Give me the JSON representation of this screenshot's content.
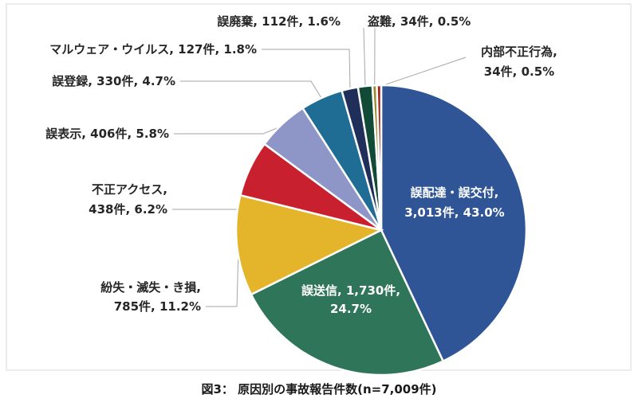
{
  "caption": "図3：  原因別の事故報告件数(n=7,009件)",
  "chart_data": {
    "type": "pie",
    "total": 7009,
    "slices": [
      {
        "name": "誤配達・誤交付",
        "count": 3013,
        "percent": 43.0,
        "color": "#2F5597",
        "label_lines": [
          "誤配達・誤交付,",
          "3,013件, 43.0%"
        ]
      },
      {
        "name": "誤送信",
        "count": 1730,
        "percent": 24.7,
        "color": "#2E7559",
        "label_lines": [
          "誤送信, 1,730件,",
          "24.7%"
        ]
      },
      {
        "name": "紛失・滅失・き損",
        "count": 785,
        "percent": 11.2,
        "color": "#E4B52A",
        "label_lines": [
          "紛失・滅失・き損,",
          "785件, 11.2%"
        ]
      },
      {
        "name": "不正アクセス",
        "count": 438,
        "percent": 6.2,
        "color": "#C9202F",
        "label_lines": [
          "不正アクセス,",
          "438件, 6.2%"
        ]
      },
      {
        "name": "誤表示",
        "count": 406,
        "percent": 5.8,
        "color": "#8E96C8",
        "label_lines": [
          "誤表示, 406件, 5.8%"
        ]
      },
      {
        "name": "誤登録",
        "count": 330,
        "percent": 4.7,
        "color": "#1F6C94",
        "label_lines": [
          "誤登録, 330件, 4.7%"
        ]
      },
      {
        "name": "マルウェア・ウイルス",
        "count": 127,
        "percent": 1.8,
        "color": "#1F2F5A",
        "label_lines": [
          "マルウェア・ウイルス, 127件, 1.8%"
        ]
      },
      {
        "name": "誤廃棄",
        "count": 112,
        "percent": 1.6,
        "color": "#124A38",
        "label_lines": [
          "誤廃棄, 112件, 1.6%"
        ]
      },
      {
        "name": "盗難",
        "count": 34,
        "percent": 0.5,
        "color": "#9C8A2E",
        "label_lines": [
          "盗難, 34件, 0.5%"
        ]
      },
      {
        "name": "内部不正行為",
        "count": 34,
        "percent": 0.5,
        "color": "#A3261E",
        "label_lines": [
          "内部不正行為,",
          "34件, 0.5%"
        ]
      }
    ]
  }
}
